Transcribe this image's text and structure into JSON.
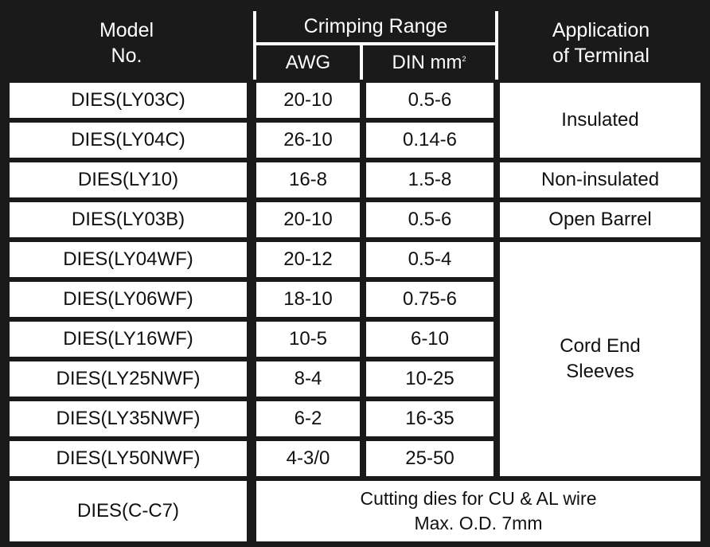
{
  "header": {
    "model_no": "Model\nNo.",
    "crimping_range": "Crimping Range",
    "awg": "AWG",
    "din": "DIN mm",
    "din_sup": "2",
    "application": "Application\nof Terminal"
  },
  "rows": [
    {
      "model": "DIES(LY03C)",
      "awg": "20-10",
      "din": "0.5-6"
    },
    {
      "model": "DIES(LY04C)",
      "awg": "26-10",
      "din": "0.14-6"
    },
    {
      "model": "DIES(LY10)",
      "awg": "16-8",
      "din": "1.5-8"
    },
    {
      "model": "DIES(LY03B)",
      "awg": "20-10",
      "din": "0.5-6"
    },
    {
      "model": "DIES(LY04WF)",
      "awg": "20-12",
      "din": "0.5-4"
    },
    {
      "model": "DIES(LY06WF)",
      "awg": "18-10",
      "din": "0.75-6"
    },
    {
      "model": "DIES(LY16WF)",
      "awg": "10-5",
      "din": "6-10"
    },
    {
      "model": "DIES(LY25NWF)",
      "awg": "8-4",
      "din": "10-25"
    },
    {
      "model": "DIES(LY35NWF)",
      "awg": "6-2",
      "din": "16-35"
    },
    {
      "model": "DIES(LY50NWF)",
      "awg": "4-3/0",
      "din": "25-50"
    },
    {
      "model": "DIES(C-C7)",
      "note": "Cutting dies for CU & AL wire\nMax. O.D. 7mm"
    }
  ],
  "applications": {
    "insulated": "Insulated",
    "non_insulated": "Non-insulated",
    "open_barrel": "Open Barrel",
    "cord_end": "Cord End\nSleeves"
  }
}
